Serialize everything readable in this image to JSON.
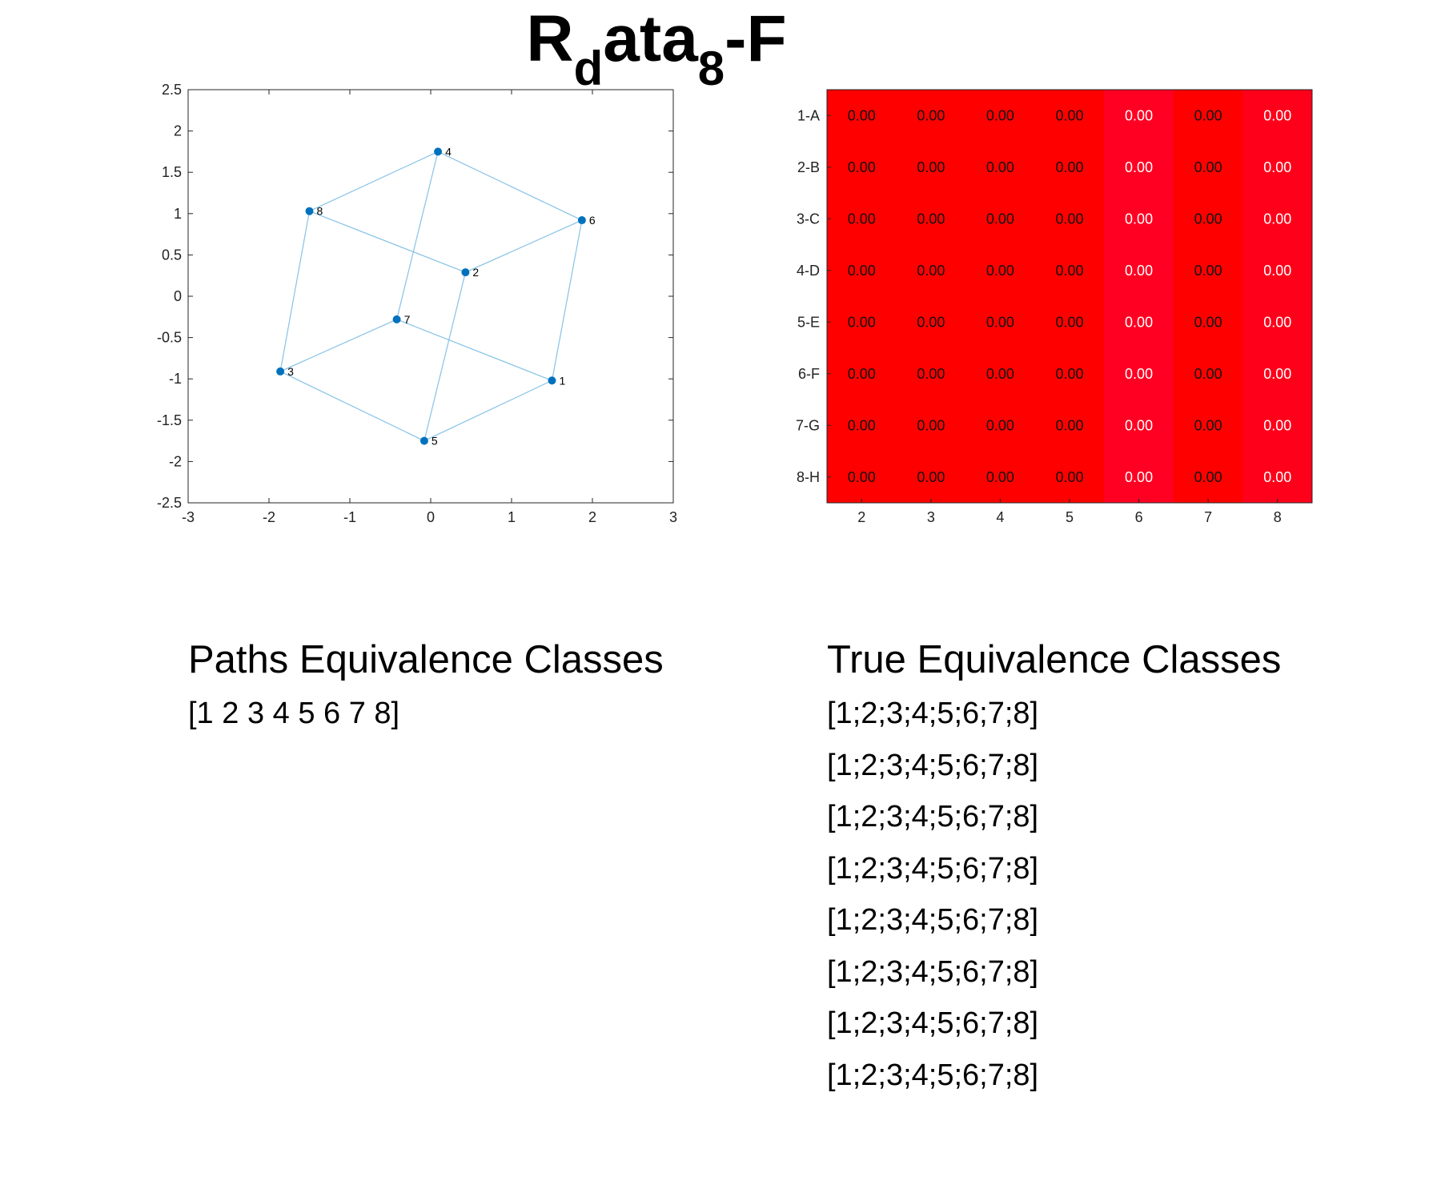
{
  "title": {
    "base": "R",
    "sub1": "d",
    "mid": "ata",
    "sub2": "8",
    "end": "-F"
  },
  "colors": {
    "node": "#0072bd",
    "edge": "#86c2e6",
    "heatmap_col_a": "#ff0000",
    "heatmap_col_b": "#ff0022",
    "heatmap_col_c": "#ff001a"
  },
  "chart_data": [
    {
      "type": "scatter",
      "xlim": [
        -3,
        3
      ],
      "ylim": [
        -2.5,
        2.5
      ],
      "x_ticks": [
        "-3",
        "-2",
        "-1",
        "0",
        "1",
        "2",
        "3"
      ],
      "y_ticks": [
        "2.5",
        "2",
        "1.5",
        "1",
        "0.5",
        "0",
        "-0.5",
        "-1",
        "-1.5",
        "-2",
        "-2.5"
      ],
      "nodes": [
        {
          "label": "1",
          "x": 1.5,
          "y": -1.02
        },
        {
          "label": "2",
          "x": 0.43,
          "y": 0.29
        },
        {
          "label": "3",
          "x": -1.86,
          "y": -0.91
        },
        {
          "label": "4",
          "x": 0.09,
          "y": 1.75
        },
        {
          "label": "5",
          "x": -0.08,
          "y": -1.75
        },
        {
          "label": "6",
          "x": 1.87,
          "y": 0.92
        },
        {
          "label": "7",
          "x": -0.42,
          "y": -0.28
        },
        {
          "label": "8",
          "x": -1.5,
          "y": 1.03
        }
      ],
      "edges": [
        [
          4,
          8
        ],
        [
          4,
          6
        ],
        [
          4,
          7
        ],
        [
          8,
          2
        ],
        [
          8,
          3
        ],
        [
          6,
          2
        ],
        [
          6,
          1
        ],
        [
          2,
          5
        ],
        [
          7,
          3
        ],
        [
          7,
          1
        ],
        [
          3,
          5
        ],
        [
          5,
          1
        ]
      ],
      "grid": false
    },
    {
      "type": "heatmap",
      "row_labels": [
        "1-A",
        "2-B",
        "3-C",
        "4-D",
        "5-E",
        "6-F",
        "7-G",
        "8-H"
      ],
      "col_labels": [
        "2",
        "3",
        "4",
        "5",
        "6",
        "7",
        "8"
      ],
      "values": [
        [
          "0.00",
          "0.00",
          "0.00",
          "0.00",
          "0.00",
          "0.00",
          "0.00"
        ],
        [
          "0.00",
          "0.00",
          "0.00",
          "0.00",
          "0.00",
          "0.00",
          "0.00"
        ],
        [
          "0.00",
          "0.00",
          "0.00",
          "0.00",
          "0.00",
          "0.00",
          "0.00"
        ],
        [
          "0.00",
          "0.00",
          "0.00",
          "0.00",
          "0.00",
          "0.00",
          "0.00"
        ],
        [
          "0.00",
          "0.00",
          "0.00",
          "0.00",
          "0.00",
          "0.00",
          "0.00"
        ],
        [
          "0.00",
          "0.00",
          "0.00",
          "0.00",
          "0.00",
          "0.00",
          "0.00"
        ],
        [
          "0.00",
          "0.00",
          "0.00",
          "0.00",
          "0.00",
          "0.00",
          "0.00"
        ],
        [
          "0.00",
          "0.00",
          "0.00",
          "0.00",
          "0.00",
          "0.00",
          "0.00"
        ]
      ],
      "col_colors": [
        "#ff0000",
        "#ff0000",
        "#ff0000",
        "#ff0000",
        "#ff0022",
        "#ff0000",
        "#ff001a"
      ],
      "col_text_light": [
        false,
        false,
        false,
        false,
        true,
        false,
        true
      ]
    }
  ],
  "paths_section": {
    "heading": "Paths Equivalence Classes",
    "lines": [
      "[1 2 3 4 5 6 7 8]"
    ]
  },
  "true_section": {
    "heading": "True Equivalence Classes",
    "lines": [
      "[1;2;3;4;5;6;7;8]",
      "[1;2;3;4;5;6;7;8]",
      "[1;2;3;4;5;6;7;8]",
      "[1;2;3;4;5;6;7;8]",
      "[1;2;3;4;5;6;7;8]",
      "[1;2;3;4;5;6;7;8]",
      "[1;2;3;4;5;6;7;8]",
      "[1;2;3;4;5;6;7;8]"
    ]
  }
}
